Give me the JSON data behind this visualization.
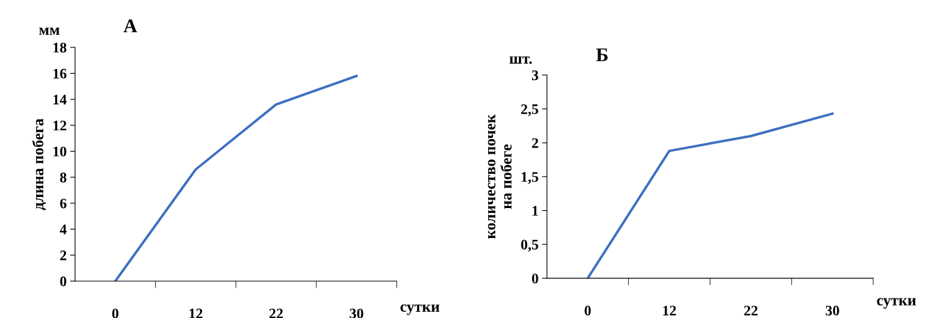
{
  "chart_data": [
    {
      "type": "line",
      "title": "А",
      "ylabel": "длина побега",
      "categories": [
        "0",
        "12",
        "22",
        "30"
      ],
      "series": [
        {
          "color": "#3d6fc0",
          "values": [
            0,
            8.6,
            13.6,
            15.8
          ]
        }
      ],
      "ylim": [
        0,
        18
      ],
      "yticks": [
        0,
        2,
        4,
        6,
        8,
        10,
        12,
        14,
        16,
        18
      ],
      "grid": false,
      "legend": false,
      "marker": "none",
      "line_style": "solid",
      "annotations": [
        "мм",
        "сутки"
      ]
    },
    {
      "type": "line",
      "title": "Б",
      "ylabel": "количество почек\nна побеге",
      "categories": [
        "0",
        "12",
        "22",
        "30"
      ],
      "series": [
        {
          "color": "#3d6fc0",
          "values": [
            0,
            1.88,
            2.1,
            2.43
          ]
        }
      ],
      "ylim": [
        0,
        3
      ],
      "yticks": [
        0,
        {
          "value": 0.5,
          "label": "0,5"
        },
        1,
        {
          "value": 1.5,
          "label": "1,5"
        },
        2,
        {
          "value": 2.5,
          "label": "2,5"
        },
        3
      ],
      "grid": false,
      "legend": false,
      "marker": "none",
      "line_style": "solid",
      "annotations": [
        "шт.",
        "сутки"
      ]
    }
  ]
}
